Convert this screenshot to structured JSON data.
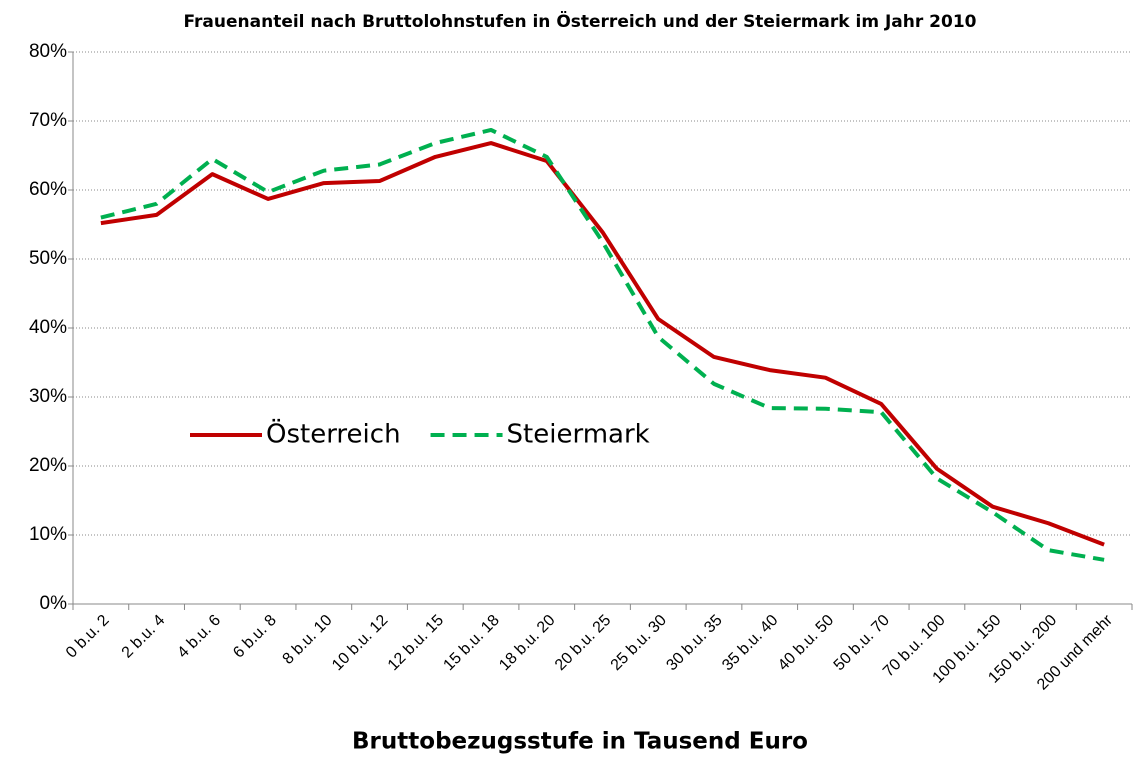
{
  "chart_data": {
    "type": "line",
    "title": "Frauenanteil nach Bruttolohnstufen in Österreich und der Steiermark im Jahr 2010",
    "x_label": "Bruttobezugsstufe in Tausend Euro",
    "categories": [
      "0 b.u. 2",
      "2 b.u. 4",
      "4 b.u. 6",
      "6 b.u. 8",
      "8 b.u. 10",
      "10 b.u. 12",
      "12 b.u. 15",
      "15 b.u. 18",
      "18 b.u. 20",
      "20 b.u. 25",
      "25 b.u. 30",
      "30 b.u. 35",
      "35 b.u. 40",
      "40 b.u. 50",
      "50 b.u. 70",
      "70 b.u. 100",
      "100 b.u. 150",
      "150 b.u. 200",
      "200 und mehr"
    ],
    "series": [
      {
        "name": "Österreich",
        "color": "#c00000",
        "dash": "solid",
        "values": [
          55.2,
          56.4,
          62.3,
          58.7,
          61.0,
          61.3,
          64.8,
          66.8,
          64.2,
          53.9,
          41.3,
          35.8,
          33.9,
          32.8,
          29.0,
          19.6,
          14.1,
          11.7,
          8.6
        ]
      },
      {
        "name": "Steiermark",
        "color": "#00b050",
        "dash": "dashed",
        "values": [
          56.0,
          58.0,
          64.5,
          59.7,
          62.8,
          63.7,
          66.8,
          68.7,
          64.8,
          52.5,
          38.7,
          31.9,
          28.4,
          28.3,
          27.8,
          18.2,
          13.3,
          7.8,
          6.4
        ]
      }
    ],
    "ylim": [
      0,
      80
    ],
    "yticks": [
      {
        "value": 0,
        "label": "0%"
      },
      {
        "value": 10,
        "label": "10%"
      },
      {
        "value": 20,
        "label": "20%"
      },
      {
        "value": 30,
        "label": "30%"
      },
      {
        "value": 40,
        "label": "40%"
      },
      {
        "value": 50,
        "label": "50%"
      },
      {
        "value": 60,
        "label": "60%"
      },
      {
        "value": 70,
        "label": "70%"
      },
      {
        "value": 80,
        "label": "80%"
      }
    ],
    "grid": true,
    "legend": "center-left"
  }
}
